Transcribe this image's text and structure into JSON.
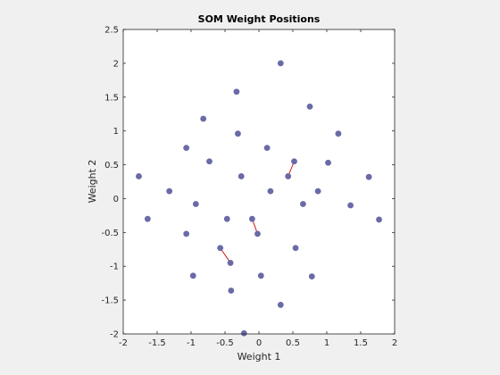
{
  "chart_data": {
    "type": "scatter",
    "title": "SOM Weight Positions",
    "xlabel": "Weight 1",
    "ylabel": "Weight 2",
    "xlim": [
      -2,
      2
    ],
    "ylim": [
      -2,
      2.5
    ],
    "xticks": [
      "-2",
      "-1.5",
      "-1",
      "-0.5",
      "0",
      "0.5",
      "1",
      "1.5",
      "2"
    ],
    "yticks": [
      "-2",
      "-1.5",
      "-1",
      "-0.5",
      "0",
      "0.5",
      "1",
      "1.5",
      "2",
      "2.5"
    ],
    "grid": false,
    "background": "#ffffff",
    "figure_background": "#f0f0f0",
    "point_color": "#6a6aa8",
    "edge_color": "#cc0000",
    "neurons": [
      {
        "x": -1.77,
        "y": 0.33
      },
      {
        "x": -1.32,
        "y": 0.11
      },
      {
        "x": -0.93,
        "y": -0.08
      },
      {
        "x": -0.47,
        "y": -0.3
      },
      {
        "x": -0.02,
        "y": -0.52
      },
      {
        "x": 0.54,
        "y": -0.73
      },
      {
        "x": -1.64,
        "y": -0.3
      },
      {
        "x": -1.07,
        "y": 0.75
      },
      {
        "x": -0.73,
        "y": 0.55
      },
      {
        "x": -0.26,
        "y": 0.33
      },
      {
        "x": 0.17,
        "y": 0.11
      },
      {
        "x": 0.65,
        "y": -0.08
      },
      {
        "x": -1.07,
        "y": -0.52
      },
      {
        "x": -0.57,
        "y": -0.73
      },
      {
        "x": -0.82,
        "y": 1.18
      },
      {
        "x": -0.31,
        "y": 0.96
      },
      {
        "x": 0.12,
        "y": 0.75
      },
      {
        "x": 0.52,
        "y": 0.55
      },
      {
        "x": -0.97,
        "y": -1.14
      },
      {
        "x": -0.42,
        "y": -0.95
      },
      {
        "x": -0.1,
        "y": -0.3
      },
      {
        "x": -0.33,
        "y": 1.58
      },
      {
        "x": 0.43,
        "y": 0.33
      },
      {
        "x": 0.87,
        "y": 0.11
      },
      {
        "x": -0.41,
        "y": -1.36
      },
      {
        "x": 0.03,
        "y": -1.14
      },
      {
        "x": 0.32,
        "y": 2.0
      },
      {
        "x": 0.75,
        "y": 1.36
      },
      {
        "x": 1.17,
        "y": 0.96
      },
      {
        "x": 1.35,
        "y": -0.1
      },
      {
        "x": -0.22,
        "y": -1.99
      },
      {
        "x": 0.32,
        "y": -1.57
      },
      {
        "x": 0.78,
        "y": -1.15
      },
      {
        "x": 1.02,
        "y": 0.53
      },
      {
        "x": 1.62,
        "y": 0.32
      },
      {
        "x": 1.77,
        "y": -0.31
      }
    ]
  }
}
